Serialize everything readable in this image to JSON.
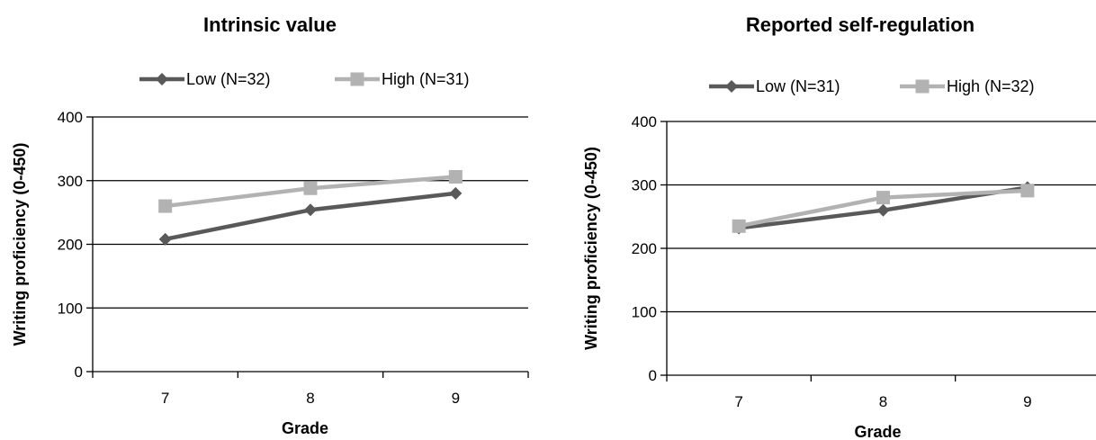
{
  "chart_data": [
    {
      "type": "line",
      "title": "Intrinsic value",
      "xlabel": "Grade",
      "ylabel": "Writing proficiency  (0-450)",
      "categories": [
        "7",
        "8",
        "9"
      ],
      "ylim": [
        0,
        400
      ],
      "yticks": [
        "0",
        "100",
        "200",
        "300",
        "400"
      ],
      "grid": true,
      "legend_position": "top",
      "series": [
        {
          "name": "Low (N=32)",
          "values": [
            208,
            254,
            280
          ],
          "color": "#595959",
          "marker": "diamond"
        },
        {
          "name": "High (N=31)",
          "values": [
            260,
            288,
            306
          ],
          "color": "#b2b2b2",
          "marker": "square"
        }
      ]
    },
    {
      "type": "line",
      "title": "Reported self-regulation",
      "xlabel": "Grade",
      "ylabel": "Writing proficiency  (0-450)",
      "categories": [
        "7",
        "8",
        "9"
      ],
      "ylim": [
        0,
        400
      ],
      "yticks": [
        "0",
        "100",
        "200",
        "300",
        "400"
      ],
      "grid": true,
      "legend_position": "top",
      "series": [
        {
          "name": "Low (N=31)",
          "values": [
            232,
            260,
            296
          ],
          "color": "#595959",
          "marker": "diamond"
        },
        {
          "name": "High (N=32)",
          "values": [
            235,
            280,
            291
          ],
          "color": "#b2b2b2",
          "marker": "square"
        }
      ]
    }
  ]
}
